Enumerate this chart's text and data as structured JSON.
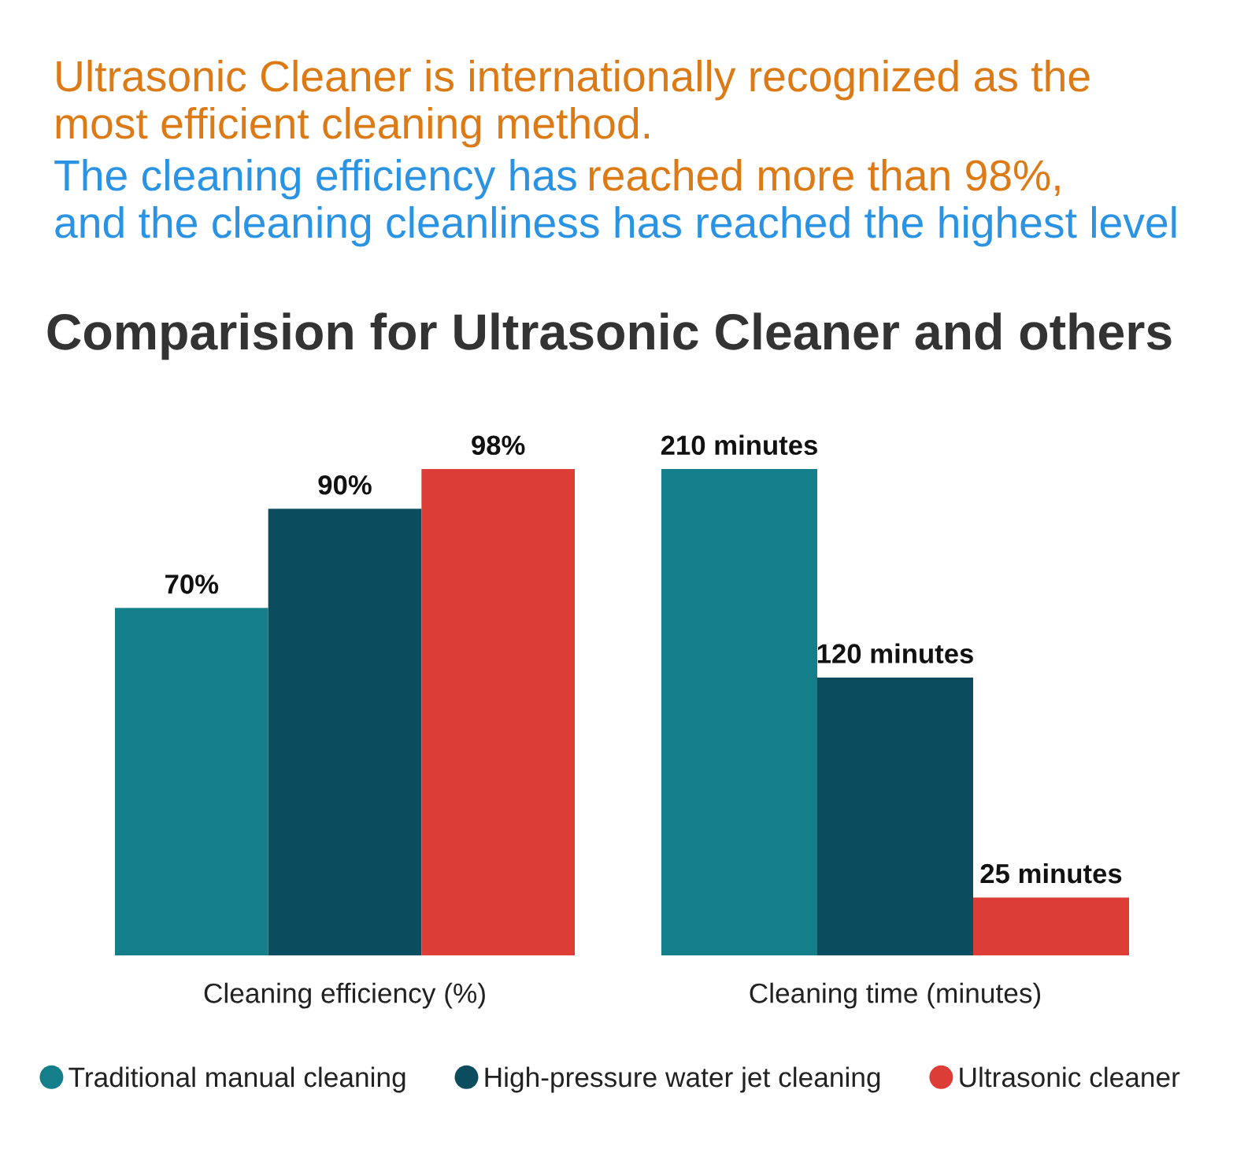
{
  "chart_data": [
    {
      "type": "bar",
      "title": "Comparision for Ultrasonic Cleaner and others",
      "annotations": [
        "Ultrasonic Cleaner is internationally recognized as the",
        "most efficient cleaning method.",
        "The cleaning efficiency has",
        "reached more than 98%,",
        "and the cleaning cleanliness has reached the highest level"
      ],
      "xlabel": "Cleaning efficiency (%)",
      "categories": [
        null,
        null,
        null
      ],
      "stacked": true,
      "series": [
        {
          "name": "Traditional manual cleaning",
          "color": "#147e8a",
          "values": [
            70,
            null,
            null
          ],
          "value_labels": [
            "70%",
            null,
            null
          ]
        },
        {
          "name": "High-pressure water jet cleaning",
          "color": "#0b4d5e",
          "values": [
            null,
            90,
            null
          ],
          "value_labels": [
            null,
            "90%",
            null
          ]
        },
        {
          "name": "Ultrasonic cleaner",
          "color": "#dc3d36",
          "values": [
            null,
            null,
            98
          ],
          "value_labels": [
            null,
            null,
            "98%"
          ]
        }
      ],
      "tick_labels": false,
      "legend": "bottom"
    },
    {
      "type": "bar",
      "xlabel": "Cleaning time (minutes)",
      "categories": [
        null,
        null,
        null
      ],
      "stacked": true,
      "series": [
        {
          "color": "#147e8a",
          "values": [
            210,
            null,
            null
          ],
          "value_labels": [
            "210 minutes",
            null,
            null
          ]
        },
        {
          "color": "#0b4d5e",
          "values": [
            null,
            120,
            null
          ],
          "value_labels": [
            null,
            "120 minutes",
            null
          ]
        },
        {
          "color": "#dc3d36",
          "values": [
            null,
            null,
            25
          ],
          "value_labels": [
            null,
            null,
            "25 minutes"
          ]
        }
      ],
      "tick_labels": false
    }
  ]
}
